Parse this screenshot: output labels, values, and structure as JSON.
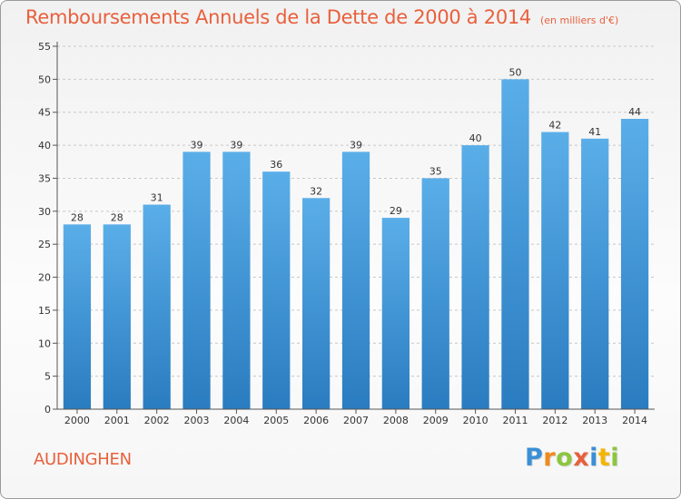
{
  "chart_data": {
    "type": "bar",
    "title": "Remboursements Annuels de la Dette de 2000 à 2014",
    "unit_note": "(en milliers d'€)",
    "categories": [
      "2000",
      "2001",
      "2002",
      "2003",
      "2004",
      "2005",
      "2006",
      "2007",
      "2008",
      "2009",
      "2010",
      "2011",
      "2012",
      "2013",
      "2014"
    ],
    "values": [
      28,
      28,
      31,
      39,
      39,
      36,
      32,
      39,
      29,
      35,
      40,
      50,
      42,
      41,
      44
    ],
    "xlabel": "",
    "ylabel": "",
    "ylim": [
      0,
      55
    ],
    "yticks": [
      0,
      5,
      10,
      15,
      20,
      25,
      30,
      35,
      40,
      45,
      50,
      55
    ],
    "grid": "horizontal-dashed",
    "bar_color_top": "#5aaee8",
    "bar_color_bottom": "#2a7cc0"
  },
  "footer": {
    "commune": "AUDINGHEN",
    "logo_letters": [
      {
        "ch": "P",
        "color": "#3a8fd6"
      },
      {
        "ch": "r",
        "color": "#f08a1c"
      },
      {
        "ch": "o",
        "color": "#8cc63f"
      },
      {
        "ch": "x",
        "color": "#e8603c"
      },
      {
        "ch": "i",
        "color": "#3a8fd6"
      },
      {
        "ch": "t",
        "color": "#f5b400"
      },
      {
        "ch": "i",
        "color": "#8cc63f"
      }
    ]
  },
  "colors": {
    "title": "#e8603c",
    "axis": "#555555",
    "grid": "#c8c8c8"
  }
}
